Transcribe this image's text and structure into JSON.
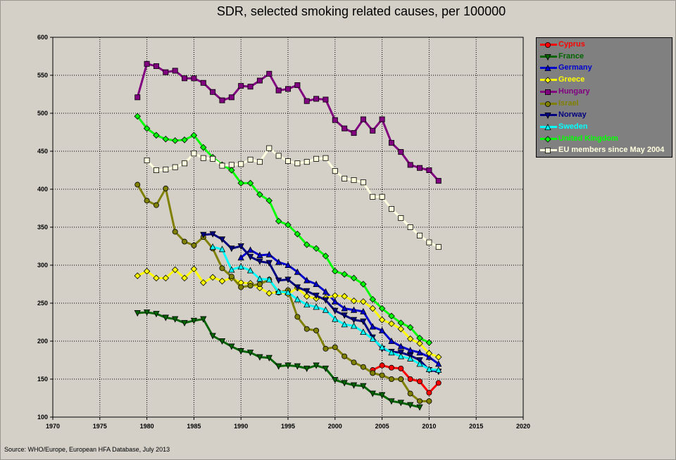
{
  "title": "SDR, selected smoking related causes, per 100000",
  "source": "Source: WHO/Europe, European HFA Database, July 2013",
  "chart_data": {
    "type": "line",
    "title": "SDR, selected smoking related causes, per 100000",
    "xlabel": "",
    "ylabel": "",
    "xlim": [
      1970,
      2020
    ],
    "ylim": [
      100,
      600
    ],
    "x_ticks": [
      1970,
      1975,
      1980,
      1985,
      1990,
      1995,
      2000,
      2005,
      2010,
      2015,
      2020
    ],
    "y_ticks": [
      100,
      150,
      200,
      250,
      300,
      350,
      400,
      450,
      500,
      550,
      600
    ],
    "grid": true,
    "legend_position": "right",
    "series": [
      {
        "name": "Cyprus",
        "color": "#ff0000",
        "marker": "circle",
        "x": [
          2004,
          2005,
          2006,
          2007,
          2008,
          2009,
          2010,
          2011
        ],
        "y": [
          162,
          168,
          165,
          164,
          150,
          147,
          132,
          145
        ]
      },
      {
        "name": "France",
        "color": "#006400",
        "marker": "triangle-down",
        "x": [
          1979,
          1980,
          1981,
          1982,
          1983,
          1984,
          1985,
          1986,
          1987,
          1988,
          1989,
          1990,
          1991,
          1992,
          1993,
          1994,
          1995,
          1996,
          1997,
          1998,
          1999,
          2000,
          2001,
          2002,
          2003,
          2004,
          2005,
          2006,
          2007,
          2008,
          2009
        ],
        "y": [
          237,
          238,
          236,
          231,
          229,
          224,
          227,
          229,
          207,
          200,
          193,
          187,
          185,
          179,
          178,
          167,
          168,
          167,
          164,
          168,
          164,
          149,
          145,
          142,
          141,
          131,
          129,
          121,
          119,
          116,
          113
        ]
      },
      {
        "name": "Germany",
        "color": "#0000cd",
        "marker": "triangle",
        "x": [
          1990,
          1991,
          1992,
          1993,
          1994,
          1995,
          1996,
          1997,
          1998,
          1999,
          2000,
          2001,
          2002,
          2003,
          2004,
          2005,
          2006,
          2007,
          2008,
          2009,
          2010,
          2011
        ],
        "y": [
          310,
          320,
          313,
          314,
          304,
          300,
          291,
          280,
          275,
          265,
          252,
          243,
          241,
          239,
          219,
          214,
          200,
          193,
          188,
          185,
          179,
          170
        ]
      },
      {
        "name": "Greece",
        "color": "#ffff00",
        "marker": "diamond",
        "x": [
          1979,
          1980,
          1981,
          1982,
          1983,
          1984,
          1985,
          1986,
          1987,
          1988,
          1989,
          1990,
          1991,
          1992,
          1993,
          1994,
          1995,
          1996,
          1997,
          1998,
          1999,
          2000,
          2001,
          2002,
          2003,
          2004,
          2005,
          2006,
          2007,
          2008,
          2009,
          2010,
          2011
        ],
        "y": [
          286,
          292,
          283,
          283,
          294,
          283,
          295,
          277,
          284,
          279,
          283,
          277,
          276,
          270,
          263,
          265,
          262,
          270,
          259,
          256,
          257,
          260,
          259,
          253,
          252,
          243,
          228,
          223,
          216,
          203,
          197,
          184,
          179
        ]
      },
      {
        "name": "Hungary",
        "color": "#800080",
        "marker": "square",
        "x": [
          1979,
          1980,
          1981,
          1982,
          1983,
          1984,
          1985,
          1986,
          1987,
          1988,
          1989,
          1990,
          1991,
          1992,
          1993,
          1994,
          1995,
          1996,
          1997,
          1998,
          1999,
          2000,
          2001,
          2002,
          2003,
          2004,
          2005,
          2006,
          2007,
          2008,
          2009,
          2010,
          2011
        ],
        "y": [
          521,
          565,
          562,
          554,
          556,
          546,
          546,
          540,
          528,
          517,
          521,
          536,
          535,
          543,
          552,
          530,
          532,
          537,
          516,
          519,
          518,
          491,
          480,
          474,
          492,
          477,
          492,
          461,
          449,
          432,
          428,
          425,
          411
        ]
      },
      {
        "name": "Israel",
        "color": "#808000",
        "marker": "circle",
        "x": [
          1979,
          1980,
          1981,
          1982,
          1983,
          1984,
          1985,
          1986,
          1987,
          1988,
          1989,
          1990,
          1991,
          1992,
          1993,
          1994,
          1995,
          1996,
          1997,
          1998,
          1999,
          2000,
          2001,
          2002,
          2003,
          2004,
          2005,
          2006,
          2007,
          2008,
          2009,
          2010
        ],
        "y": [
          406,
          385,
          379,
          401,
          344,
          331,
          326,
          337,
          322,
          296,
          285,
          271,
          273,
          275,
          281,
          264,
          267,
          232,
          216,
          214,
          190,
          192,
          180,
          172,
          166,
          158,
          155,
          150,
          150,
          131,
          121,
          121
        ]
      },
      {
        "name": "Norway",
        "color": "#000080",
        "marker": "triangle-down",
        "x": [
          1986,
          1987,
          1988,
          1989,
          1990,
          1991,
          1992,
          1993,
          1994,
          1995,
          1996,
          1997,
          1998,
          1999,
          2000,
          2001,
          2002,
          2003,
          2004,
          2005,
          2006,
          2007,
          2008,
          2009,
          2010,
          2011
        ],
        "y": [
          340,
          341,
          334,
          322,
          325,
          311,
          305,
          303,
          280,
          281,
          271,
          266,
          260,
          254,
          240,
          234,
          228,
          226,
          205,
          190,
          186,
          185,
          181,
          175,
          162,
          160
        ]
      },
      {
        "name": "Sweden",
        "color": "#00ffff",
        "marker": "triangle",
        "x": [
          1987,
          1988,
          1989,
          1990,
          1991,
          1992,
          1993,
          1994,
          1995,
          1996,
          1997,
          1998,
          1999,
          2000,
          2001,
          2002,
          2003,
          2004,
          2005,
          2006,
          2007,
          2008,
          2009,
          2010,
          2011
        ],
        "y": [
          324,
          321,
          294,
          298,
          293,
          282,
          281,
          265,
          264,
          255,
          248,
          245,
          241,
          229,
          222,
          220,
          212,
          203,
          192,
          185,
          180,
          177,
          170,
          163,
          162
        ]
      },
      {
        "name": "United Kingdom",
        "color": "#00ff00",
        "marker": "diamond",
        "x": [
          1979,
          1980,
          1981,
          1982,
          1983,
          1984,
          1985,
          1986,
          1987,
          1988,
          1989,
          1990,
          1991,
          1992,
          1993,
          1994,
          1995,
          1996,
          1997,
          1998,
          1999,
          2000,
          2001,
          2002,
          2003,
          2004,
          2005,
          2006,
          2007,
          2008,
          2009,
          2010
        ],
        "y": [
          496,
          480,
          471,
          466,
          464,
          465,
          471,
          455,
          442,
          432,
          425,
          408,
          408,
          393,
          385,
          358,
          353,
          341,
          327,
          322,
          312,
          292,
          288,
          283,
          275,
          255,
          243,
          233,
          224,
          218,
          204,
          198
        ]
      },
      {
        "name": "EU members since May 2004",
        "color": "#ffffe0",
        "marker": "square",
        "x": [
          1980,
          1981,
          1982,
          1983,
          1984,
          1985,
          1986,
          1987,
          1988,
          1989,
          1990,
          1991,
          1992,
          1993,
          1994,
          1995,
          1996,
          1997,
          1998,
          1999,
          2000,
          2001,
          2002,
          2003,
          2004,
          2005,
          2006,
          2007,
          2008,
          2009,
          2010,
          2011
        ],
        "y": [
          438,
          425,
          426,
          429,
          434,
          447,
          441,
          440,
          431,
          432,
          433,
          439,
          436,
          454,
          444,
          437,
          434,
          436,
          440,
          441,
          424,
          414,
          412,
          409,
          390,
          390,
          374,
          362,
          350,
          339,
          330,
          324
        ]
      }
    ]
  }
}
